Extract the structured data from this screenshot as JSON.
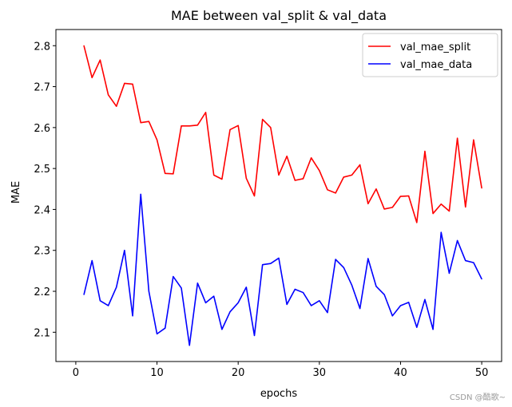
{
  "watermark": "CSDN @酷歌~",
  "chart_data": {
    "type": "line",
    "title": "MAE between val_split & val_data",
    "xlabel": "epochs",
    "ylabel": "MAE",
    "xlim": [
      -2.45,
      52.45
    ],
    "ylim": [
      2.0285,
      2.8395
    ],
    "xticks": [
      0,
      10,
      20,
      30,
      40,
      50
    ],
    "yticks": [
      2.1,
      2.2,
      2.3,
      2.4,
      2.5,
      2.6,
      2.7,
      2.8
    ],
    "ytick_labels": [
      "2.1",
      "2.2",
      "2.3",
      "2.4",
      "2.5",
      "2.6",
      "2.7",
      "2.8"
    ],
    "legend_position": "top-right",
    "x": [
      1,
      2,
      3,
      4,
      5,
      6,
      7,
      8,
      9,
      10,
      11,
      12,
      13,
      14,
      15,
      16,
      17,
      18,
      19,
      20,
      21,
      22,
      23,
      24,
      25,
      26,
      27,
      28,
      29,
      30,
      31,
      32,
      33,
      34,
      35,
      36,
      37,
      38,
      39,
      40,
      41,
      42,
      43,
      44,
      45,
      46,
      47,
      48,
      49,
      50
    ],
    "series": [
      {
        "name": "val_mae_split",
        "color": "#ff0000",
        "values": [
          2.8,
          2.722,
          2.765,
          2.68,
          2.652,
          2.708,
          2.706,
          2.612,
          2.615,
          2.57,
          2.488,
          2.487,
          2.604,
          2.604,
          2.606,
          2.637,
          2.484,
          2.474,
          2.595,
          2.605,
          2.476,
          2.433,
          2.62,
          2.6,
          2.484,
          2.53,
          2.471,
          2.475,
          2.526,
          2.495,
          2.448,
          2.44,
          2.479,
          2.484,
          2.509,
          2.414,
          2.45,
          2.401,
          2.405,
          2.432,
          2.433,
          2.368,
          2.542,
          2.39,
          2.413,
          2.396,
          2.574,
          2.406,
          2.57,
          2.452
        ]
      },
      {
        "name": "val_mae_data",
        "color": "#0000ff",
        "values": [
          2.192,
          2.275,
          2.177,
          2.165,
          2.21,
          2.3,
          2.14,
          2.437,
          2.2,
          2.096,
          2.11,
          2.236,
          2.208,
          2.068,
          2.22,
          2.172,
          2.188,
          2.107,
          2.15,
          2.172,
          2.21,
          2.092,
          2.265,
          2.268,
          2.281,
          2.168,
          2.205,
          2.197,
          2.165,
          2.177,
          2.148,
          2.278,
          2.258,
          2.215,
          2.158,
          2.28,
          2.212,
          2.192,
          2.14,
          2.165,
          2.173,
          2.112,
          2.18,
          2.107,
          2.344,
          2.244,
          2.324,
          2.275,
          2.27,
          2.23
        ]
      }
    ]
  }
}
